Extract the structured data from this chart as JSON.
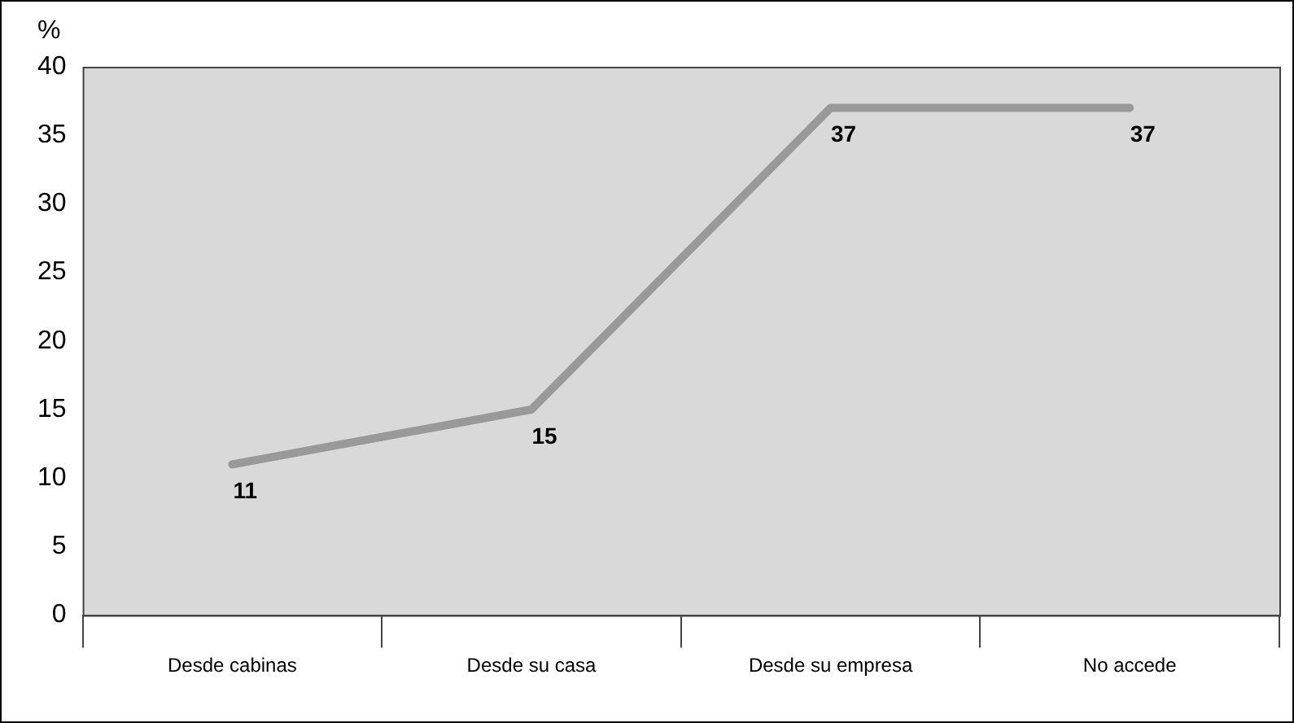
{
  "chart_data": {
    "type": "line",
    "ylabel": "%",
    "categories": [
      "Desde cabinas",
      "Desde su casa",
      "Desde su empresa",
      "No accede"
    ],
    "series": [
      {
        "color": "#999999",
        "values": [
          11,
          15,
          37,
          37
        ]
      }
    ],
    "ylim": [
      0,
      40
    ],
    "yticks": [
      0,
      5,
      10,
      15,
      20,
      25,
      30,
      35,
      40
    ],
    "grid": false,
    "legend": false,
    "marker": "none",
    "line_style": "solid",
    "data_labels": true
  }
}
